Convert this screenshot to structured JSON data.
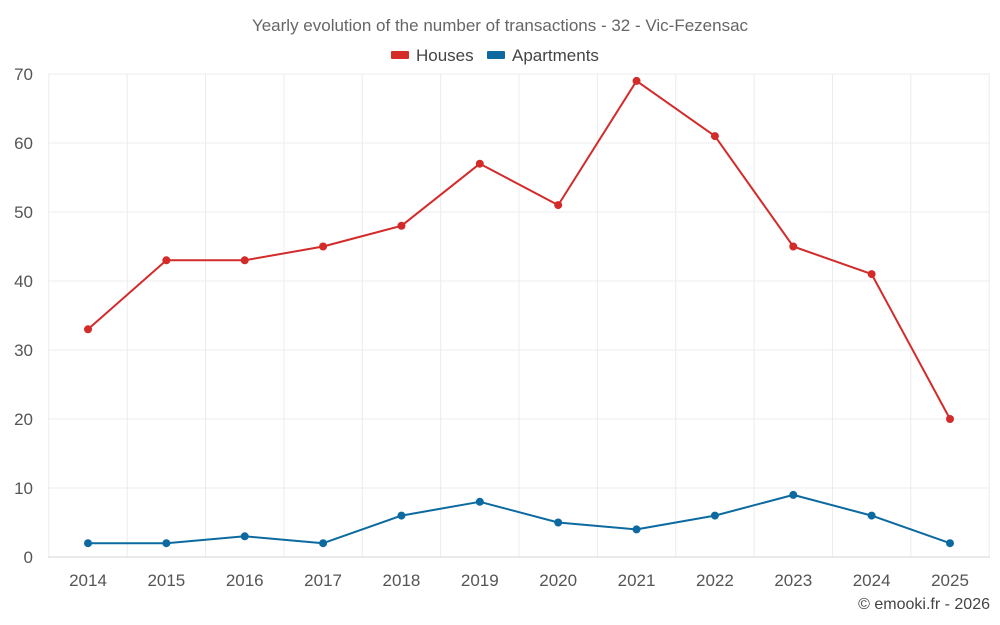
{
  "chart_data": {
    "type": "line",
    "title": "Yearly evolution of the number of transactions - 32 - Vic-Fezensac",
    "categories": [
      "2014",
      "2015",
      "2016",
      "2017",
      "2018",
      "2019",
      "2020",
      "2021",
      "2022",
      "2023",
      "2024",
      "2025"
    ],
    "series": [
      {
        "name": "Houses",
        "color": "#d32a2a",
        "values": [
          33,
          43,
          43,
          45,
          48,
          57,
          51,
          69,
          61,
          45,
          41,
          20
        ]
      },
      {
        "name": "Apartments",
        "color": "#0c6aa0",
        "values": [
          2,
          2,
          3,
          2,
          6,
          8,
          5,
          4,
          6,
          9,
          6,
          2
        ]
      }
    ],
    "ylim": [
      0,
      70
    ],
    "yticks": [
      "0",
      "10",
      "20",
      "30",
      "40",
      "50",
      "60",
      "70"
    ],
    "xlabel": "",
    "ylabel": "",
    "grid": true,
    "legend_position": "top-center"
  },
  "credit": "© emooki.fr - 2026"
}
